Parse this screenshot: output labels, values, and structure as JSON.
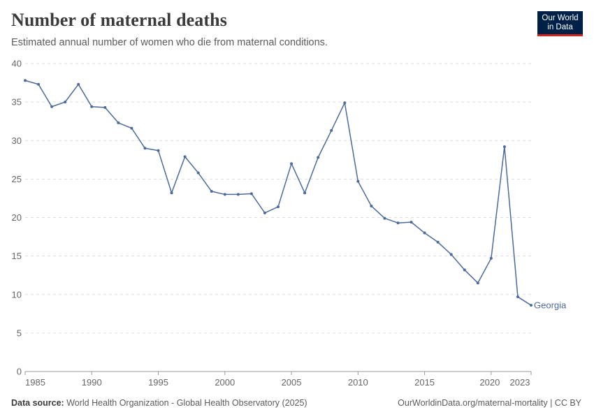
{
  "header": {
    "title": "Number of maternal deaths",
    "subtitle": "Estimated annual number of women who die from maternal conditions."
  },
  "logo": {
    "line1": "Our World",
    "line2": "in Data",
    "bg_color": "#002147",
    "accent_color": "#ce261e"
  },
  "footer": {
    "source_label": "Data source:",
    "source_text": "World Health Organization - Global Health Observatory (2025)",
    "url_text": "OurWorldinData.org/maternal-mortality | CC BY"
  },
  "chart_data": {
    "type": "line",
    "title": "Number of maternal deaths",
    "subtitle": "Estimated annual number of women who die from maternal conditions.",
    "xlim": [
      1985,
      2023
    ],
    "ylim": [
      0,
      40
    ],
    "x_ticks": [
      1985,
      1990,
      1995,
      2000,
      2005,
      2010,
      2015,
      2020,
      2023
    ],
    "y_ticks": [
      0,
      5,
      10,
      15,
      20,
      25,
      30,
      35,
      40
    ],
    "grid": "horizontal dashed",
    "series_color": "#4c6a9c",
    "series": [
      {
        "name": "Georgia",
        "x": [
          1985,
          1986,
          1987,
          1988,
          1989,
          1990,
          1991,
          1992,
          1993,
          1994,
          1995,
          1996,
          1997,
          1998,
          1999,
          2000,
          2001,
          2002,
          2003,
          2004,
          2005,
          2006,
          2007,
          2008,
          2009,
          2010,
          2011,
          2012,
          2013,
          2014,
          2015,
          2016,
          2017,
          2018,
          2019,
          2020,
          2021,
          2022,
          2023
        ],
        "values": [
          37.8,
          37.3,
          34.4,
          35.0,
          37.3,
          34.4,
          34.3,
          32.3,
          31.6,
          29.0,
          28.7,
          23.2,
          27.9,
          25.8,
          23.4,
          23.0,
          23.0,
          23.1,
          20.6,
          21.4,
          27.0,
          23.2,
          27.8,
          31.3,
          34.9,
          24.7,
          21.5,
          19.9,
          19.3,
          19.4,
          18.0,
          16.8,
          15.2,
          13.2,
          11.5,
          14.7,
          29.2,
          9.7,
          8.6
        ]
      }
    ]
  }
}
